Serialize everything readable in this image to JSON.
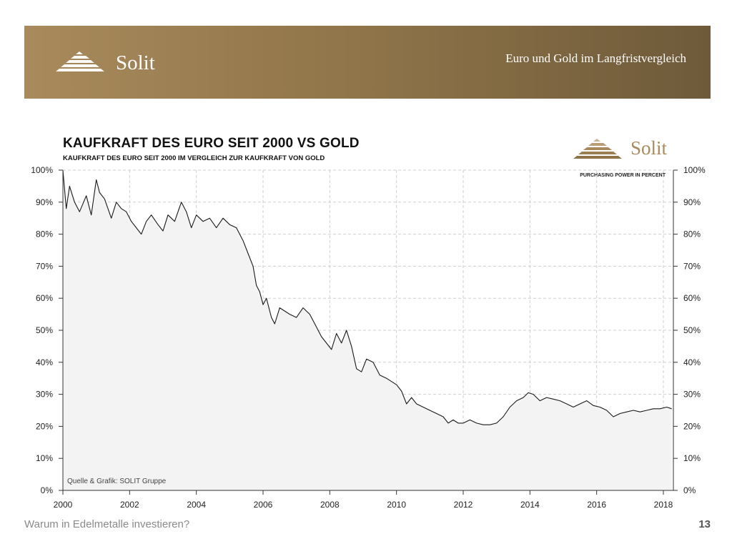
{
  "banner": {
    "brand": "Solit",
    "subtitle": "Euro und Gold im Langfristvergleich",
    "logo_icon": "stepped-pyramid-icon"
  },
  "chart_header": {
    "brand": "Solit",
    "note": "PURCHASING POWER IN PERCENT",
    "source": "Quelle & Grafik: SOLIT Gruppe"
  },
  "footer": {
    "caption": "Warum in Edelmetalle investieren?",
    "page_number": "13"
  },
  "colors": {
    "banner_gold": "#a88a5c",
    "banner_dark": "#6e5a3a",
    "series_line": "#1a1a1a",
    "area_fill": "#f3f3f3",
    "grid": "#cfcfcf"
  },
  "chart_data": {
    "type": "area",
    "title": "KAUFKRAFT DES EURO SEIT 2000 VS GOLD",
    "subtitle": "KAUFKRAFT DES EURO SEIT 2000 IM VERGLEICH ZUR KAUFKRAFT VON GOLD",
    "xlabel": "",
    "ylabel": "",
    "xlim": [
      2000,
      2018.3
    ],
    "ylim": [
      0,
      100
    ],
    "x_ticks": [
      "2000",
      "2002",
      "2004",
      "2006",
      "2008",
      "2010",
      "2012",
      "2014",
      "2016",
      "2018"
    ],
    "y_ticks": [
      "0%",
      "10%",
      "20%",
      "30%",
      "40%",
      "50%",
      "60%",
      "70%",
      "80%",
      "90%",
      "100%"
    ],
    "y_axis_both_sides": true,
    "grid": true,
    "series": [
      {
        "x": [
          2000.0,
          2000.1,
          2000.2,
          2000.35,
          2000.5,
          2000.7,
          2000.85,
          2001.0,
          2001.1,
          2001.25,
          2001.45,
          2001.6,
          2001.75,
          2001.9,
          2002.05,
          2002.2,
          2002.35,
          2002.5,
          2002.65,
          2002.85,
          2003.0,
          2003.15,
          2003.35,
          2003.55,
          2003.7,
          2003.85,
          2004.0,
          2004.2,
          2004.4,
          2004.6,
          2004.8,
          2005.0,
          2005.2,
          2005.4,
          2005.55,
          2005.7,
          2005.8,
          2005.9,
          2006.0,
          2006.1,
          2006.25,
          2006.35,
          2006.5,
          2006.65,
          2006.8,
          2007.0,
          2007.2,
          2007.4,
          2007.6,
          2007.75,
          2007.9,
          2008.05,
          2008.2,
          2008.35,
          2008.5,
          2008.65,
          2008.8,
          2008.95,
          2009.1,
          2009.3,
          2009.5,
          2009.7,
          2009.85,
          2010.0,
          2010.15,
          2010.3,
          2010.45,
          2010.6,
          2010.8,
          2011.0,
          2011.2,
          2011.4,
          2011.55,
          2011.7,
          2011.85,
          2012.0,
          2012.2,
          2012.4,
          2012.6,
          2012.8,
          2013.0,
          2013.2,
          2013.4,
          2013.6,
          2013.8,
          2013.95,
          2014.1,
          2014.3,
          2014.5,
          2014.7,
          2014.9,
          2015.1,
          2015.3,
          2015.5,
          2015.7,
          2015.9,
          2016.1,
          2016.3,
          2016.5,
          2016.7,
          2016.9,
          2017.1,
          2017.3,
          2017.5,
          2017.7,
          2017.9,
          2018.1,
          2018.25
        ],
        "values": [
          100,
          88,
          95,
          90,
          87,
          92,
          86,
          97,
          93,
          91,
          85,
          90,
          88,
          87,
          84,
          82,
          80,
          84,
          86,
          83,
          81,
          86,
          84,
          90,
          87,
          82,
          86,
          84,
          85,
          82,
          85,
          83,
          82,
          78,
          74,
          70,
          64,
          62,
          58,
          60,
          54,
          52,
          57,
          56,
          55,
          54,
          57,
          55,
          51,
          48,
          46,
          44,
          49,
          46,
          50,
          45,
          38,
          37,
          41,
          40,
          36,
          35,
          34,
          33,
          31,
          27,
          29,
          27,
          26,
          25,
          24,
          23,
          21,
          22,
          21,
          21,
          22,
          21,
          20.5,
          20.5,
          21,
          23,
          26,
          28,
          29,
          30.5,
          30,
          28,
          29,
          28.5,
          28,
          27,
          26,
          27,
          28,
          26.5,
          26,
          25,
          23,
          24,
          24.5,
          25,
          24.5,
          25,
          25.5,
          25.5,
          26,
          25.5
        ]
      }
    ],
    "annotations": [
      "Quelle & Grafik: SOLIT Gruppe"
    ]
  }
}
